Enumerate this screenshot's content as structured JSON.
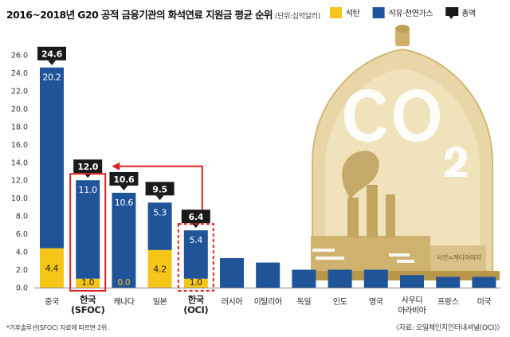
{
  "title": "2016~2018년 G20 공적 금융기관의 화석연료 지원금 평균 순위",
  "unit": "(단위:십억달러)",
  "footnote": "*기후솔루션(SFOC) 자료에 따르면 2위.",
  "source": "〈자료: 오일체인지인터내셔널(OCI)〉",
  "photo_credit": "사진=게티이미지",
  "colors": {
    "coal": "#f5c518",
    "oilgas": "#1f5499",
    "total": "#1a1a1a",
    "highlight": "#e02020",
    "axis": "#888888"
  },
  "chart_data": {
    "type": "bar",
    "stacked": true,
    "categories": [
      "중국",
      "한국\n(SFOC)",
      "캐나다",
      "일본",
      "한국\n(OCI)",
      "러시아",
      "이탈리아",
      "독일",
      "인도",
      "영국",
      "사우디\n아라비아",
      "프랑스",
      "미국"
    ],
    "series": [
      {
        "name": "석탄",
        "color": "#f5c518",
        "values": [
          4.4,
          1.0,
          0.0,
          4.2,
          1.0,
          0.0,
          0.0,
          0.0,
          0.0,
          0.0,
          0.0,
          0.0,
          0.0
        ]
      },
      {
        "name": "석유·천연가스",
        "color": "#1f5499",
        "values": [
          20.2,
          11.0,
          10.6,
          5.3,
          5.4,
          3.3,
          2.8,
          2.0,
          2.0,
          2.0,
          1.4,
          1.2,
          1.2
        ]
      }
    ],
    "coal_labels": [
      "4.4",
      "1.0",
      "0.0",
      "4.2",
      "1.0",
      "",
      "",
      "",
      "",
      "",
      "",
      "",
      ""
    ],
    "oilgas_labels": [
      "20.2",
      "11.0",
      "10.6",
      "5.3",
      "5.4",
      "",
      "",
      "",
      "",
      "",
      "",
      "",
      ""
    ],
    "totals": [
      "24.6",
      "12.0",
      "10.6",
      "9.5",
      "6.4",
      "",
      "",
      "",
      "",
      "",
      "",
      "",
      ""
    ],
    "highlighted": [
      1,
      4
    ],
    "bold_categories": [
      1,
      4
    ],
    "legend": [
      {
        "label": "석탄",
        "key": "coal"
      },
      {
        "label": "석유·천연가스",
        "key": "oilgas"
      },
      {
        "label": "총액",
        "key": "total"
      }
    ],
    "legend_position": "top-right",
    "ylim": [
      0,
      26
    ],
    "yticks": [
      "0.0",
      "2.0",
      "4.0",
      "6.0",
      "8.0",
      "10.0",
      "12.0",
      "14.0",
      "16.0",
      "18.0",
      "20.0",
      "22.0",
      "24.0",
      "26.0"
    ],
    "ytick_values": [
      0,
      2,
      4,
      6,
      8,
      10,
      12,
      14,
      16,
      18,
      20,
      22,
      24,
      26
    ],
    "grid": false,
    "annotation": {
      "from": 4,
      "to": 1,
      "label": "12.0"
    }
  }
}
